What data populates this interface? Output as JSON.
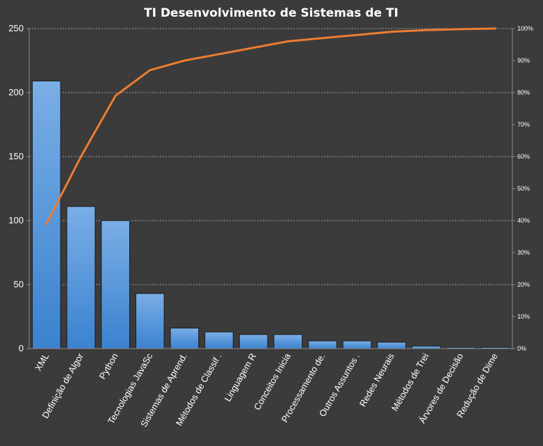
{
  "chart_data": {
    "type": "bar",
    "title": "TI Desenvolvimento  de Sistemas de TI",
    "categories": [
      "XML",
      "Definição de Algor",
      "Python",
      "Tecnologias JavaSc",
      "Sistemas de Aprend.",
      "Métodos de Classif .",
      "Linguagem R",
      "Conceitos Inicia",
      "Processamento de.",
      "Outros Assuntos  .",
      "Redes Neurais",
      "Métodos de Trei",
      "Árvores de Decisão",
      "Redução de Dime"
    ],
    "series": [
      {
        "type": "bar",
        "axis": "left",
        "values": [
          209,
          111,
          100,
          43,
          16,
          13,
          11,
          11,
          6,
          6,
          5,
          2,
          1,
          1
        ]
      },
      {
        "type": "line",
        "axis": "right",
        "values": [
          0.39,
          0.6,
          0.79,
          0.87,
          0.9,
          0.92,
          0.94,
          0.96,
          0.97,
          0.98,
          0.99,
          0.995,
          0.998,
          1.0
        ]
      }
    ],
    "ylim_left": [
      0,
      250
    ],
    "yticks_left": [
      "0",
      "50",
      "100",
      "150",
      "200",
      "250"
    ],
    "ylim_right": [
      0,
      1
    ],
    "yticks_right": [
      "0%",
      "10%",
      "20%",
      "30%",
      "40%",
      "50%",
      "60%",
      "70%",
      "80%",
      "90%",
      "100%"
    ],
    "grid": true,
    "legend": "none",
    "colors": {
      "background": "#3b3b3b",
      "bar_top": "#7aaee6",
      "bar_bottom": "#3b82cf",
      "bar_edge": "#1a1a1a",
      "line": "#ed7d31",
      "grid": "#bfbfbf",
      "text": "#ffffff"
    }
  }
}
